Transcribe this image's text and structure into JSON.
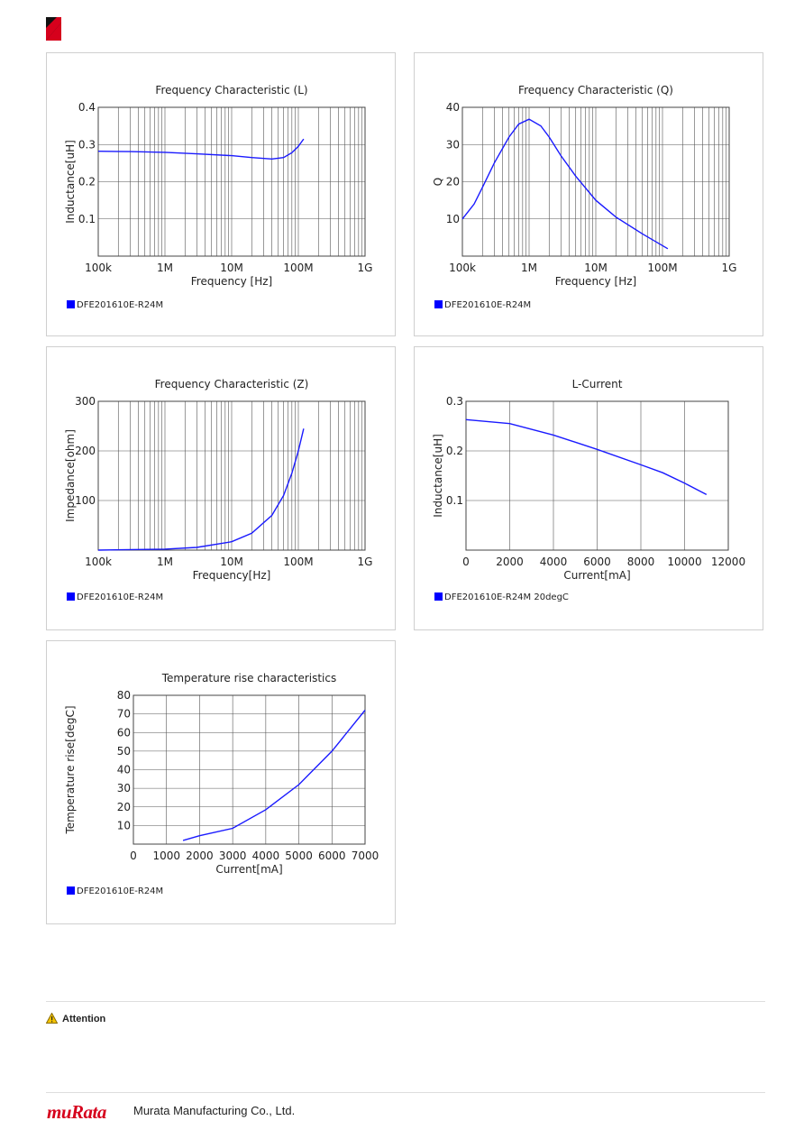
{
  "footer": {
    "brand": "muRata",
    "company": "Murata Manufacturing Co., Ltd."
  },
  "attention": {
    "label": "Attention"
  },
  "chart_data": [
    {
      "type": "line",
      "title": "Frequency   Characteristic (L)",
      "xlabel": "Frequency [Hz]",
      "ylabel": "Inductance[uH]",
      "xscale": "log",
      "xlim": [
        100000,
        1000000000
      ],
      "ylim": [
        0,
        0.4
      ],
      "xticks": [
        100000,
        1000000,
        10000000,
        100000000,
        1000000000
      ],
      "xtick_labels": [
        "100k",
        "1M",
        "10M",
        "100M",
        "1G"
      ],
      "yticks": [
        0.1,
        0.2,
        0.3,
        0.4
      ],
      "ytick_labels": [
        "0.1",
        "0.2",
        "0.3",
        "0.4"
      ],
      "grid": true,
      "series": [
        {
          "name": "DFE201610E-R24M",
          "x": [
            100000,
            300000,
            1000000,
            3000000,
            10000000,
            20000000,
            40000000,
            60000000,
            80000000,
            100000000,
            120000000
          ],
          "y": [
            0.282,
            0.281,
            0.279,
            0.275,
            0.27,
            0.265,
            0.261,
            0.265,
            0.278,
            0.295,
            0.315
          ]
        }
      ],
      "legend": "bottom-left"
    },
    {
      "type": "line",
      "title": "Frequency   Characteristic (Q)",
      "xlabel": "Frequency [Hz]",
      "ylabel": "Q",
      "xscale": "log",
      "xlim": [
        100000,
        1000000000
      ],
      "ylim": [
        0,
        40
      ],
      "xticks": [
        100000,
        1000000,
        10000000,
        100000000,
        1000000000
      ],
      "xtick_labels": [
        "100k",
        "1M",
        "10M",
        "100M",
        "1G"
      ],
      "yticks": [
        10,
        20,
        30,
        40
      ],
      "ytick_labels": [
        "10",
        "20",
        "30",
        "40"
      ],
      "grid": true,
      "series": [
        {
          "name": "DFE201610E-R24M",
          "x": [
            100000,
            150000,
            200000,
            300000,
            500000,
            700000,
            1000000,
            1500000,
            2000000,
            3000000,
            5000000,
            10000000,
            20000000,
            50000000,
            120000000
          ],
          "y": [
            10,
            14,
            18.5,
            25,
            32,
            35.5,
            36.8,
            35,
            32,
            27,
            21.5,
            15,
            10.5,
            6,
            2
          ]
        }
      ],
      "legend": "bottom-left"
    },
    {
      "type": "line",
      "title": "Frequency   Characteristic (Z)",
      "xlabel": "Frequency[Hz]",
      "ylabel": "Impedance[ohm]",
      "xscale": "log",
      "xlim": [
        100000,
        1000000000
      ],
      "ylim": [
        0,
        300
      ],
      "xticks": [
        100000,
        1000000,
        10000000,
        100000000,
        1000000000
      ],
      "xtick_labels": [
        "100k",
        "1M",
        "10M",
        "100M",
        "1G"
      ],
      "yticks": [
        100,
        200,
        300
      ],
      "ytick_labels": [
        "100",
        "200",
        "300"
      ],
      "grid": true,
      "series": [
        {
          "name": "DFE201610E-R24M",
          "x": [
            100000,
            1000000,
            3000000,
            10000000,
            20000000,
            40000000,
            60000000,
            80000000,
            100000000,
            120000000
          ],
          "y": [
            0,
            2,
            5.5,
            17,
            34,
            70,
            110,
            155,
            200,
            245
          ]
        }
      ],
      "legend": "bottom-left"
    },
    {
      "type": "line",
      "title": "L-Current",
      "xlabel": "Current[mA]",
      "ylabel": "Inductance[uH]",
      "xlim": [
        0,
        12000
      ],
      "ylim": [
        0,
        0.3
      ],
      "xticks": [
        0,
        2000,
        4000,
        6000,
        8000,
        10000,
        12000
      ],
      "xtick_labels": [
        "0",
        "2000",
        "4000",
        "6000",
        "8000",
        "10000",
        "12000"
      ],
      "yticks": [
        0.1,
        0.2,
        0.3
      ],
      "ytick_labels": [
        "0.1",
        "0.2",
        "0.3"
      ],
      "grid": true,
      "series": [
        {
          "name": "DFE201610E-R24M 20degC",
          "x": [
            0,
            2000,
            4000,
            6000,
            8000,
            9000,
            10000,
            11000
          ],
          "y": [
            0.263,
            0.255,
            0.232,
            0.203,
            0.172,
            0.156,
            0.135,
            0.112
          ]
        }
      ],
      "legend": "bottom-left"
    },
    {
      "type": "line",
      "title": "Temperature rise characteristics",
      "xlabel": "Current[mA]",
      "ylabel": "Temperature rise[degC]",
      "xlim": [
        0,
        7000
      ],
      "ylim": [
        0,
        80
      ],
      "xticks": [
        0,
        1000,
        2000,
        3000,
        4000,
        5000,
        6000,
        7000
      ],
      "xtick_labels": [
        "0",
        "1000",
        "2000",
        "3000",
        "4000",
        "5000",
        "6000",
        "7000"
      ],
      "yticks": [
        10,
        20,
        30,
        40,
        50,
        60,
        70,
        80
      ],
      "ytick_labels": [
        "10",
        "20",
        "30",
        "40",
        "50",
        "60",
        "70",
        "80"
      ],
      "grid": true,
      "series": [
        {
          "name": "DFE201610E-R24M",
          "x": [
            1500,
            2000,
            3000,
            4000,
            5000,
            6000,
            7000
          ],
          "y": [
            2,
            4.5,
            8.5,
            18.5,
            32,
            50,
            72
          ]
        }
      ],
      "legend": "bottom-left"
    }
  ]
}
